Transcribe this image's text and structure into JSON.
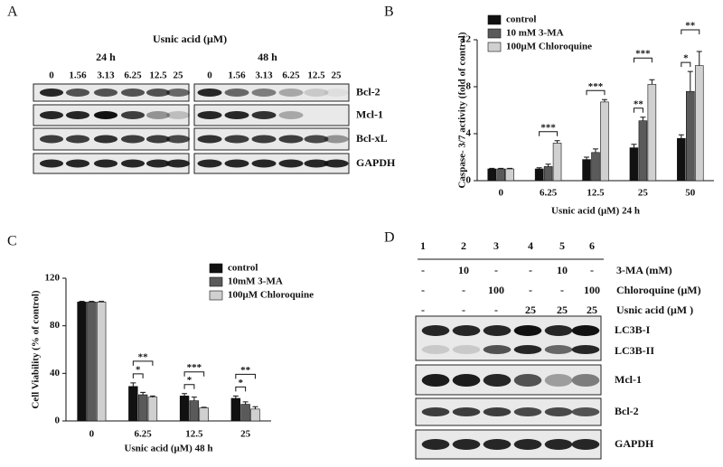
{
  "panel_labels": [
    "A",
    "B",
    "C",
    "D"
  ],
  "blot_a": {
    "title": "Usnic acid (μM)",
    "times": [
      "24 h",
      "48 h"
    ],
    "doses": [
      "0",
      "1.56",
      "3.13",
      "6.25",
      "12.5",
      "25"
    ],
    "proteins": [
      "Bcl-2",
      "Mcl-1",
      "Bcl-xL",
      "GAPDH"
    ]
  },
  "blot_d": {
    "lanes": [
      "1",
      "2",
      "3",
      "4",
      "5",
      "6"
    ],
    "treatments": [
      {
        "label": "3-MA (mM)",
        "cells": [
          "-",
          "10",
          "-",
          "-",
          "10",
          "-"
        ]
      },
      {
        "label": "Chloroquine (μM)",
        "cells": [
          "-",
          "-",
          "100",
          "-",
          "-",
          "100"
        ]
      },
      {
        "label": "Usnic acid (μM )",
        "cells": [
          "-",
          "-",
          "-",
          "25",
          "25",
          "25"
        ]
      }
    ],
    "proteins": [
      "LC3B-I",
      "LC3B-II",
      "Mcl-1",
      "Bcl-2",
      "GAPDH"
    ]
  },
  "chart_data": [
    {
      "type": "bar",
      "ylabel": "Caspase- 3/7 activity (fold of control)",
      "xlabel": "Usnic acid (μM) 24 h",
      "categories": [
        "0",
        "6.25",
        "12.5",
        "25",
        "50"
      ],
      "series": [
        {
          "name": "control",
          "color": "#111111",
          "values": [
            1,
            1,
            1.8,
            2.8,
            3.6
          ],
          "errors": [
            0.05,
            0.1,
            0.2,
            0.3,
            0.3
          ]
        },
        {
          "name": "10 mM 3-MA",
          "color": "#5a5a5a",
          "values": [
            1,
            1.2,
            2.4,
            5.1,
            7.6
          ],
          "errors": [
            0.05,
            0.2,
            0.3,
            0.3,
            1.7
          ]
        },
        {
          "name": "100μM Chloroquine",
          "color": "#d0d0d0",
          "values": [
            1,
            3.2,
            6.7,
            8.2,
            9.8
          ],
          "errors": [
            0.05,
            0.2,
            0.2,
            0.4,
            1.2
          ]
        }
      ],
      "ylim": [
        0,
        12
      ],
      "yticks": [
        0,
        4,
        8,
        12
      ],
      "annotations": [
        {
          "text": "***",
          "category": 1,
          "series": 2
        },
        {
          "text": "***",
          "category": 2,
          "series": 2
        },
        {
          "text": "**",
          "category": 3,
          "series": 1
        },
        {
          "text": "***",
          "category": 3,
          "series": 2
        },
        {
          "text": "*",
          "category": 4,
          "series": 1
        },
        {
          "text": "**",
          "category": 4,
          "series": 2
        }
      ]
    },
    {
      "type": "bar",
      "ylabel": "Cell Viability (% of control)",
      "xlabel": "Usnic acid (μM) 48 h",
      "categories": [
        "0",
        "6.25",
        "12.5",
        "25"
      ],
      "series": [
        {
          "name": "control",
          "color": "#111111",
          "values": [
            100,
            29,
            21,
            19
          ],
          "errors": [
            0.5,
            3,
            2,
            2
          ]
        },
        {
          "name": "10mM 3-MA",
          "color": "#5a5a5a",
          "values": [
            100,
            22,
            17,
            14
          ],
          "errors": [
            0.5,
            2,
            3,
            2
          ]
        },
        {
          "name": "100μM Chloroquine",
          "color": "#d0d0d0",
          "values": [
            100,
            20,
            11,
            10
          ],
          "errors": [
            0.5,
            1,
            0.5,
            2
          ]
        }
      ],
      "ylim": [
        0,
        120
      ],
      "yticks": [
        0,
        40,
        80,
        120
      ],
      "annotations": [
        {
          "text": "*",
          "category": 1,
          "series": 1
        },
        {
          "text": "**",
          "category": 1,
          "series": 2
        },
        {
          "text": "*",
          "category": 2,
          "series": 1
        },
        {
          "text": "***",
          "category": 2,
          "series": 2
        },
        {
          "text": "*",
          "category": 3,
          "series": 1
        },
        {
          "text": "**",
          "category": 3,
          "series": 2
        }
      ]
    }
  ]
}
